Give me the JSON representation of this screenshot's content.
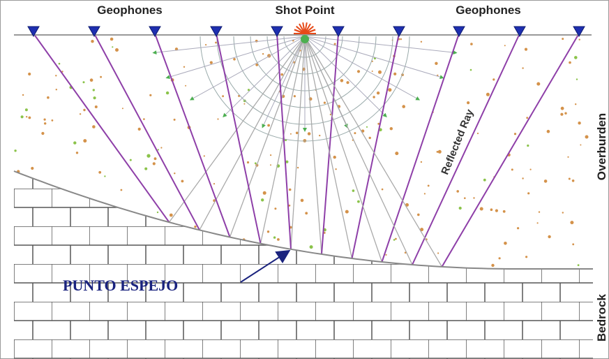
{
  "header": {
    "left_label": "Geophones",
    "center_label": "Shot Point",
    "right_label": "Geophones"
  },
  "annotations": {
    "ray": "Reflected Ray",
    "overburden": "Overburden",
    "bedrock": "Bedrock",
    "mirror_point": "PUNTO ESPEJO"
  }
}
